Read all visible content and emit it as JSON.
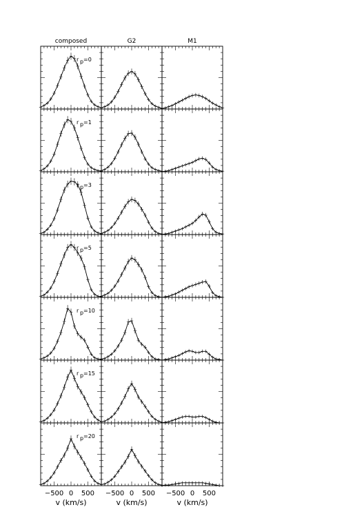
{
  "chart_data": {
    "type": "line",
    "columns": [
      "composed",
      "G2",
      "M1"
    ],
    "rows": [
      {
        "label": "r",
        "sub": "p",
        "value": "=0"
      },
      {
        "label": "r",
        "sub": "p",
        "value": "=1"
      },
      {
        "label": "r",
        "sub": "p",
        "value": "=3"
      },
      {
        "label": "r",
        "sub": "p",
        "value": "=5"
      },
      {
        "label": "r",
        "sub": "p",
        "value": "=10"
      },
      {
        "label": "r",
        "sub": "p",
        "value": "=15"
      },
      {
        "label": "r",
        "sub": "p",
        "value": "=20"
      }
    ],
    "xlabel": "v  (km/s)",
    "xlim": [
      -900,
      900
    ],
    "xticks": [
      -500,
      0,
      500
    ],
    "xtick_labels": [
      "−500",
      "0",
      "500"
    ],
    "ylim": [
      0,
      1
    ],
    "x": [
      -900,
      -800,
      -700,
      -600,
      -500,
      -400,
      -300,
      -200,
      -100,
      0,
      100,
      200,
      300,
      400,
      500,
      600,
      700,
      800,
      900
    ],
    "panels": [
      [
        {
          "column": "composed",
          "y": [
            0.03,
            0.06,
            0.1,
            0.17,
            0.27,
            0.4,
            0.55,
            0.7,
            0.83,
            0.9,
            0.86,
            0.73,
            0.56,
            0.39,
            0.24,
            0.13,
            0.07,
            0.04,
            0.02
          ]
        },
        {
          "column": "G2",
          "y": [
            0.02,
            0.04,
            0.07,
            0.12,
            0.2,
            0.3,
            0.42,
            0.53,
            0.61,
            0.64,
            0.6,
            0.5,
            0.38,
            0.26,
            0.16,
            0.09,
            0.05,
            0.03,
            0.01
          ]
        },
        {
          "column": "M1",
          "y": [
            0.01,
            0.02,
            0.04,
            0.06,
            0.09,
            0.12,
            0.15,
            0.18,
            0.21,
            0.23,
            0.24,
            0.23,
            0.21,
            0.18,
            0.14,
            0.1,
            0.07,
            0.04,
            0.02
          ]
        }
      ],
      [
        {
          "column": "composed",
          "y": [
            0.02,
            0.05,
            0.1,
            0.18,
            0.3,
            0.47,
            0.65,
            0.8,
            0.89,
            0.86,
            0.75,
            0.58,
            0.4,
            0.24,
            0.13,
            0.07,
            0.04,
            0.02,
            0.01
          ]
        },
        {
          "column": "G2",
          "y": [
            0.02,
            0.04,
            0.08,
            0.14,
            0.23,
            0.34,
            0.46,
            0.57,
            0.65,
            0.66,
            0.59,
            0.47,
            0.34,
            0.22,
            0.13,
            0.07,
            0.04,
            0.02,
            0.01
          ]
        },
        {
          "column": "M1",
          "y": [
            0.0,
            0.01,
            0.02,
            0.04,
            0.06,
            0.08,
            0.1,
            0.12,
            0.14,
            0.16,
            0.19,
            0.22,
            0.23,
            0.21,
            0.15,
            0.08,
            0.04,
            0.02,
            0.01
          ]
        }
      ],
      [
        {
          "column": "composed",
          "y": [
            0.02,
            0.04,
            0.09,
            0.16,
            0.27,
            0.42,
            0.6,
            0.76,
            0.86,
            0.91,
            0.9,
            0.85,
            0.72,
            0.5,
            0.28,
            0.13,
            0.06,
            0.03,
            0.01
          ]
        },
        {
          "column": "G2",
          "y": [
            0.02,
            0.04,
            0.07,
            0.12,
            0.19,
            0.28,
            0.38,
            0.48,
            0.56,
            0.6,
            0.58,
            0.52,
            0.43,
            0.33,
            0.21,
            0.11,
            0.05,
            0.02,
            0.01
          ]
        },
        {
          "column": "M1",
          "y": [
            0.0,
            0.01,
            0.02,
            0.04,
            0.06,
            0.08,
            0.1,
            0.13,
            0.16,
            0.19,
            0.24,
            0.3,
            0.35,
            0.33,
            0.22,
            0.1,
            0.04,
            0.02,
            0.01
          ]
        }
      ],
      [
        {
          "column": "composed",
          "y": [
            0.02,
            0.04,
            0.09,
            0.16,
            0.27,
            0.41,
            0.57,
            0.72,
            0.85,
            0.9,
            0.85,
            0.76,
            0.67,
            0.52,
            0.3,
            0.13,
            0.05,
            0.02,
            0.01
          ]
        },
        {
          "column": "G2",
          "y": [
            0.02,
            0.04,
            0.07,
            0.12,
            0.19,
            0.28,
            0.39,
            0.5,
            0.61,
            0.67,
            0.64,
            0.56,
            0.47,
            0.34,
            0.18,
            0.08,
            0.03,
            0.01,
            0.0
          ]
        },
        {
          "column": "M1",
          "y": [
            0.0,
            0.01,
            0.02,
            0.04,
            0.06,
            0.09,
            0.12,
            0.15,
            0.18,
            0.2,
            0.22,
            0.24,
            0.26,
            0.27,
            0.19,
            0.08,
            0.03,
            0.01,
            0.0
          ]
        }
      ],
      [
        {
          "column": "composed",
          "y": [
            0.02,
            0.04,
            0.07,
            0.12,
            0.2,
            0.32,
            0.47,
            0.66,
            0.88,
            0.82,
            0.58,
            0.45,
            0.39,
            0.34,
            0.22,
            0.1,
            0.04,
            0.02,
            0.01
          ]
        },
        {
          "column": "G2",
          "y": [
            0.02,
            0.03,
            0.06,
            0.1,
            0.16,
            0.24,
            0.34,
            0.47,
            0.65,
            0.67,
            0.5,
            0.34,
            0.27,
            0.22,
            0.13,
            0.06,
            0.02,
            0.01,
            0.0
          ]
        },
        {
          "column": "M1",
          "y": [
            0.0,
            0.01,
            0.02,
            0.04,
            0.06,
            0.08,
            0.11,
            0.14,
            0.16,
            0.15,
            0.13,
            0.13,
            0.15,
            0.15,
            0.1,
            0.05,
            0.02,
            0.01,
            0.0
          ]
        }
      ],
      [
        {
          "column": "composed",
          "y": [
            0.02,
            0.04,
            0.08,
            0.14,
            0.22,
            0.33,
            0.46,
            0.61,
            0.78,
            0.9,
            0.76,
            0.62,
            0.53,
            0.43,
            0.31,
            0.19,
            0.1,
            0.05,
            0.02
          ]
        },
        {
          "column": "G2",
          "y": [
            0.02,
            0.03,
            0.06,
            0.1,
            0.16,
            0.24,
            0.34,
            0.45,
            0.58,
            0.67,
            0.57,
            0.44,
            0.36,
            0.28,
            0.19,
            0.11,
            0.06,
            0.03,
            0.01
          ]
        },
        {
          "column": "M1",
          "y": [
            0.0,
            0.01,
            0.02,
            0.04,
            0.06,
            0.08,
            0.1,
            0.11,
            0.11,
            0.1,
            0.1,
            0.11,
            0.11,
            0.09,
            0.06,
            0.03,
            0.01,
            0.0,
            0.0
          ]
        }
      ],
      [
        {
          "column": "composed",
          "y": [
            0.02,
            0.04,
            0.08,
            0.14,
            0.22,
            0.32,
            0.43,
            0.52,
            0.64,
            0.8,
            0.67,
            0.57,
            0.48,
            0.38,
            0.27,
            0.16,
            0.08,
            0.04,
            0.02
          ]
        },
        {
          "column": "G2",
          "y": [
            0.02,
            0.03,
            0.06,
            0.1,
            0.16,
            0.24,
            0.32,
            0.4,
            0.5,
            0.62,
            0.51,
            0.41,
            0.33,
            0.25,
            0.17,
            0.1,
            0.05,
            0.02,
            0.01
          ]
        },
        {
          "column": "M1",
          "y": [
            0.0,
            0.01,
            0.01,
            0.02,
            0.03,
            0.04,
            0.05,
            0.05,
            0.05,
            0.05,
            0.05,
            0.05,
            0.05,
            0.04,
            0.03,
            0.02,
            0.01,
            0.0,
            0.0
          ]
        }
      ]
    ]
  }
}
